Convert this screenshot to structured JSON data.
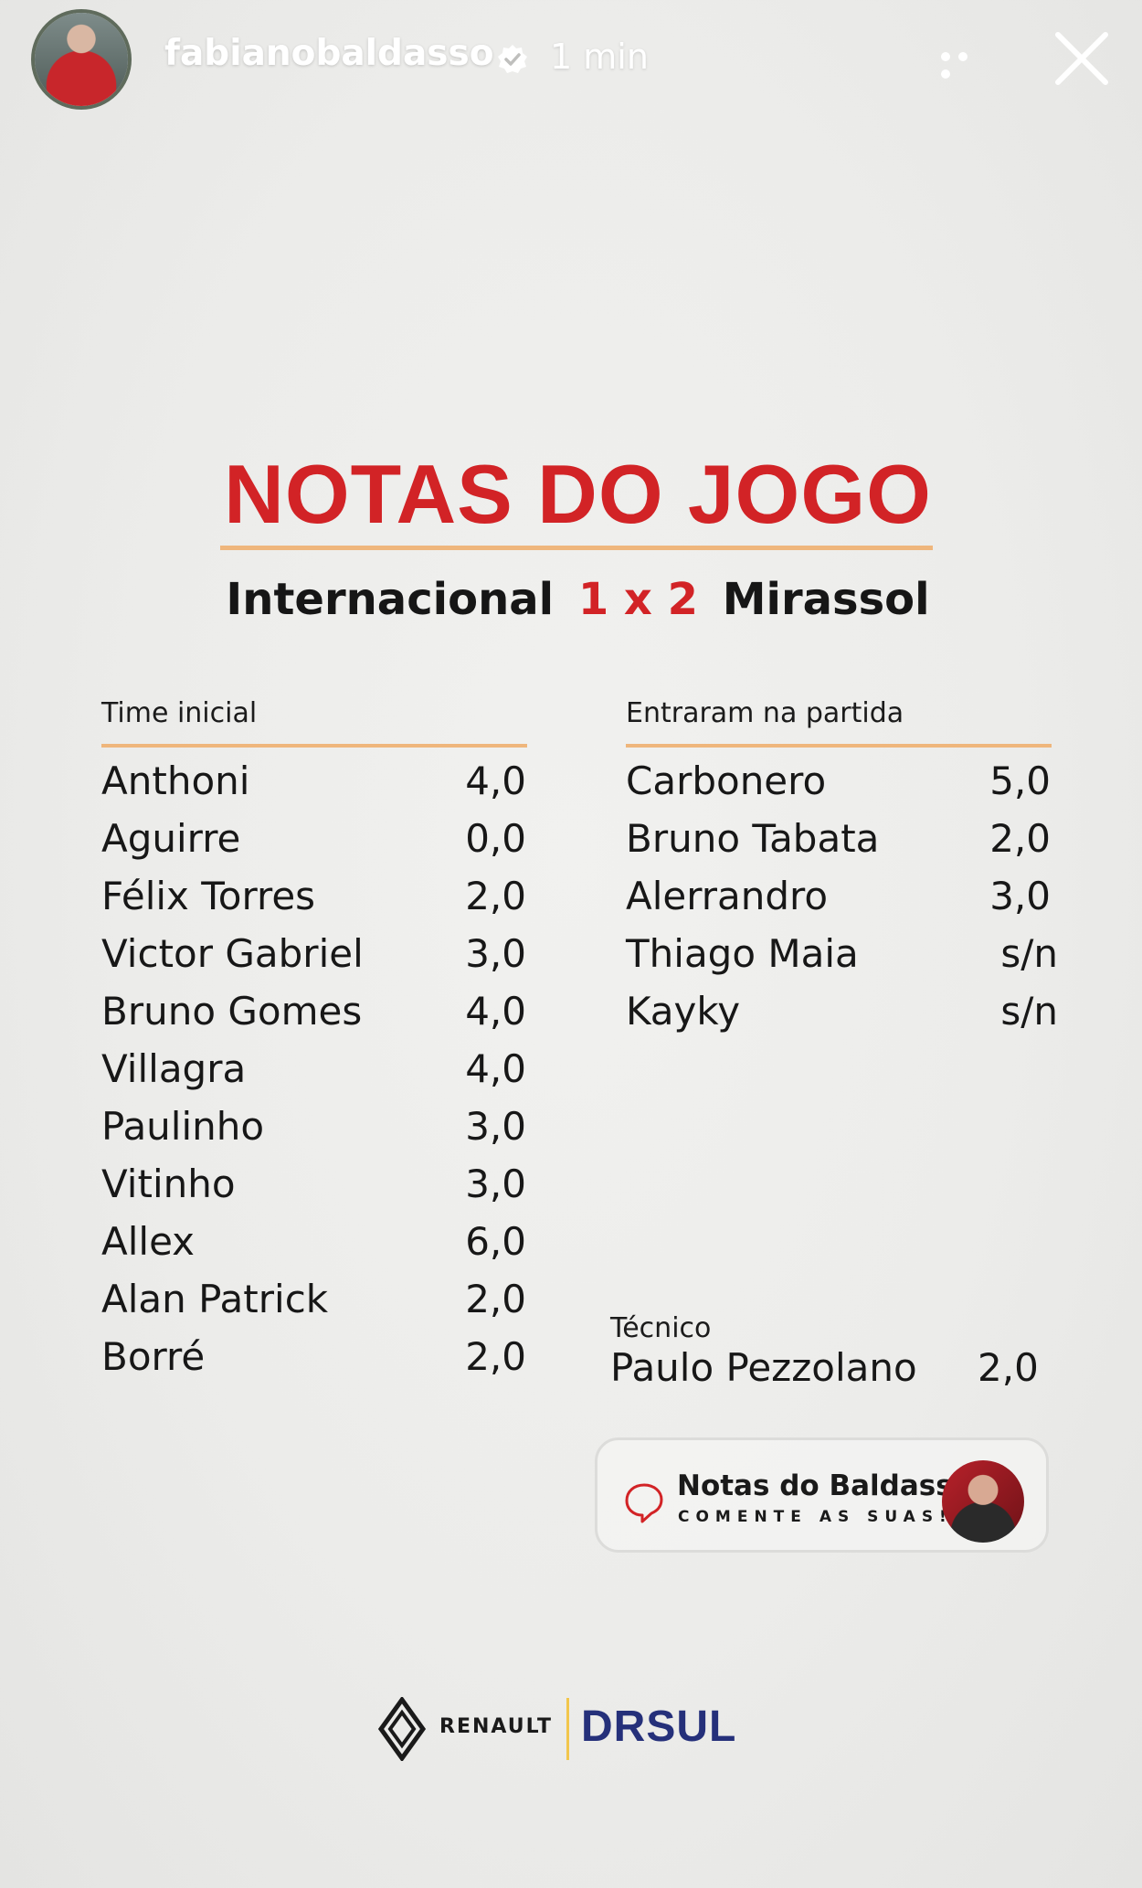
{
  "story_header": {
    "username": "fabianobaldasso",
    "time": "1 min",
    "verified_icon": "verified-badge-icon",
    "more_icon": "more-dots-icon",
    "close_icon": "close-icon"
  },
  "title": "NOTAS DO JOGO",
  "match": {
    "home_team": "Internacional",
    "score": "1 x 2",
    "away_team": "Mirassol"
  },
  "starters": {
    "heading": "Time inicial",
    "players": [
      {
        "name": "Anthoni",
        "grade": "4,0"
      },
      {
        "name": "Aguirre",
        "grade": "0,0"
      },
      {
        "name": "Félix Torres",
        "grade": "2,0"
      },
      {
        "name": "Victor Gabriel",
        "grade": "3,0"
      },
      {
        "name": "Bruno Gomes",
        "grade": "4,0"
      },
      {
        "name": "Villagra",
        "grade": "4,0"
      },
      {
        "name": "Paulinho",
        "grade": "3,0"
      },
      {
        "name": "Vitinho",
        "grade": "3,0"
      },
      {
        "name": "Allex",
        "grade": "6,0"
      },
      {
        "name": "Alan Patrick",
        "grade": "2,0"
      },
      {
        "name": "Borré",
        "grade": "2,0"
      }
    ]
  },
  "substitutes": {
    "heading": "Entraram na partida",
    "players": [
      {
        "name": "Carbonero",
        "grade": "5,0"
      },
      {
        "name": "Bruno Tabata",
        "grade": "2,0"
      },
      {
        "name": "Alerrandro",
        "grade": "3,0"
      },
      {
        "name": "Thiago Maia",
        "grade": "s/n"
      },
      {
        "name": "Kayky",
        "grade": "s/n"
      }
    ]
  },
  "coach": {
    "label": "Técnico",
    "name": "Paulo Pezzolano",
    "grade": "2,0"
  },
  "card": {
    "title": "Notas do Baldasso",
    "subtitle": "COMENTE AS SUAS!",
    "icon": "chat-bubble-icon"
  },
  "sponsors": {
    "renault": "RENAULT",
    "drsul": "DRSUL"
  },
  "colors": {
    "accent_red": "#d22326",
    "divider_orange": "#efb67c",
    "drsul_blue": "#25307a"
  }
}
